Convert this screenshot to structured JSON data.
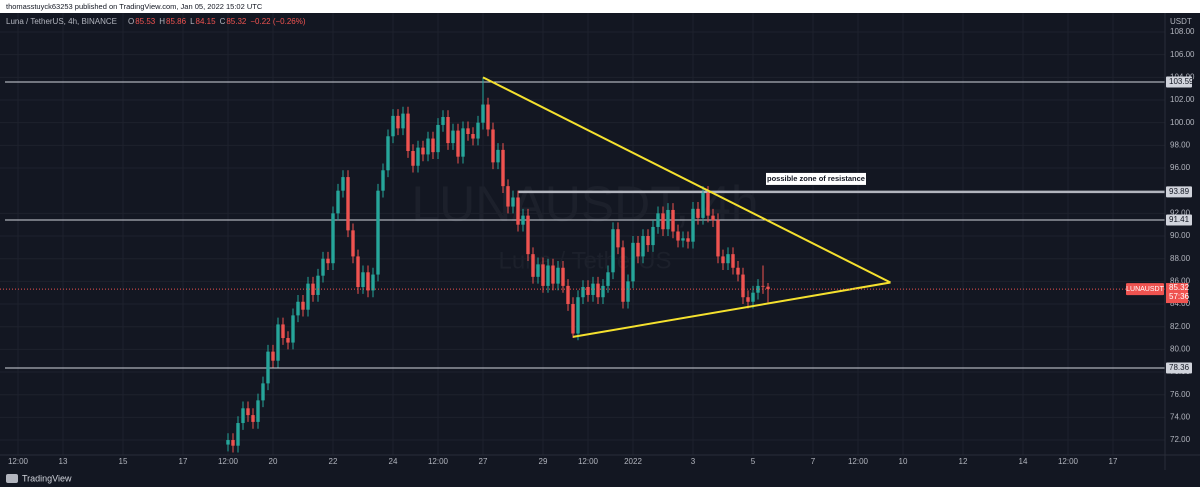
{
  "published": "thomasstuyck63253 published on TradingView.com, Jan 05, 2022 15:02 UTC",
  "footer": "TradingView",
  "header": {
    "symbol": "Luna / TetherUS, 4h, BINANCE",
    "ohlc": [
      {
        "key": "O",
        "value": 85.53
      },
      {
        "key": "H",
        "value": 85.86
      },
      {
        "key": "L",
        "value": 84.15
      },
      {
        "key": "C",
        "value": 85.32
      }
    ],
    "change": "−0.22 (−0.26%)"
  },
  "chart_data": {
    "type": "candlestick",
    "axis_unit": "USDT",
    "watermark": {
      "symbol": "LUNAUSDT, 4h",
      "name": "Luna / TetherUS"
    },
    "up_color": "#26a69a",
    "down_color": "#ef5350",
    "x": [
      420,
      424,
      428,
      432,
      436,
      440,
      444,
      448,
      452,
      456,
      460,
      464,
      468,
      472,
      476,
      480,
      484,
      488,
      492,
      496,
      500,
      504,
      508,
      512,
      516,
      520,
      524,
      528,
      532,
      536,
      540,
      544,
      548,
      552,
      556,
      560,
      564,
      568,
      572,
      576,
      580,
      584,
      588,
      592,
      596,
      600,
      604,
      608,
      612,
      616,
      620,
      624,
      628,
      632,
      636,
      640,
      644,
      648,
      652,
      656,
      660,
      664,
      668,
      672,
      676,
      680,
      684,
      688,
      692,
      696,
      700,
      704,
      708,
      712,
      716,
      720,
      724,
      728,
      732,
      736,
      740,
      744,
      748,
      752,
      756,
      760,
      764,
      768,
      772,
      776,
      780,
      784,
      788,
      792,
      796,
      800,
      804,
      808,
      812,
      816,
      820,
      824,
      828,
      832,
      836,
      840,
      844,
      848,
      852
    ],
    "open": [
      71.6,
      72.0,
      71.5,
      73.5,
      74.8,
      74.2,
      73.6,
      75.5,
      77.0,
      79.8,
      79.0,
      82.2,
      81.0,
      80.6,
      83.0,
      84.2,
      83.5,
      85.8,
      84.8,
      86.5,
      88.0,
      87.6,
      92.0,
      94.0,
      95.2,
      90.5,
      88.2,
      85.5,
      86.8,
      85.2,
      86.6,
      94.0,
      95.8,
      98.8,
      100.6,
      99.5,
      100.8,
      97.5,
      96.2,
      97.8,
      97.2,
      98.6,
      97.4,
      99.8,
      100.5,
      98.2,
      99.3,
      97.0,
      99.5,
      99.0,
      98.6,
      100.0,
      101.6,
      99.4,
      96.5,
      97.6,
      94.4,
      92.6,
      93.4,
      91.0,
      91.8,
      88.4,
      86.4,
      87.5,
      85.6,
      87.4,
      85.8,
      87.2,
      85.6,
      84.0,
      81.4,
      84.6,
      85.5,
      84.8,
      85.8,
      84.6,
      85.6,
      86.8,
      90.6,
      89.0,
      84.2,
      86.0,
      89.4,
      88.2,
      90.0,
      89.2,
      90.8,
      92.0,
      90.6,
      92.3,
      90.4,
      89.6,
      89.8,
      89.5,
      92.4,
      91.6,
      93.8,
      91.8,
      91.4,
      88.2,
      87.6,
      88.4,
      87.2,
      86.6,
      84.6,
      84.2,
      85.0,
      85.6,
      85.53
    ],
    "high": [
      72.6,
      72.6,
      74.1,
      75.4,
      75.4,
      74.8,
      76.1,
      77.6,
      80.4,
      80.4,
      82.8,
      82.8,
      81.6,
      83.6,
      84.8,
      84.8,
      86.4,
      86.4,
      87.1,
      88.6,
      88.6,
      92.6,
      94.6,
      95.8,
      95.8,
      91.1,
      88.8,
      87.4,
      87.4,
      87.2,
      94.6,
      96.4,
      99.4,
      101.2,
      101.2,
      101.4,
      101.4,
      98.1,
      98.4,
      98.4,
      99.2,
      99.2,
      100.4,
      101.1,
      101.1,
      99.9,
      99.9,
      100.1,
      100.1,
      99.6,
      100.6,
      104.0,
      102.2,
      100.0,
      98.2,
      98.2,
      95.0,
      94.0,
      94.0,
      92.4,
      92.4,
      89.0,
      88.1,
      88.1,
      88.0,
      88.0,
      87.8,
      87.8,
      86.2,
      84.6,
      85.2,
      86.1,
      86.1,
      86.4,
      86.4,
      86.2,
      87.4,
      91.2,
      91.2,
      89.6,
      86.6,
      90.0,
      90.0,
      90.6,
      90.6,
      91.4,
      92.6,
      92.6,
      92.9,
      92.9,
      91.0,
      90.4,
      90.4,
      93.0,
      93.0,
      94.4,
      94.4,
      92.4,
      92.0,
      88.8,
      89.0,
      89.0,
      87.8,
      87.2,
      85.2,
      85.6,
      86.2,
      87.4,
      85.86
    ],
    "low": [
      71.0,
      70.9,
      70.9,
      72.9,
      73.6,
      73.0,
      73.0,
      74.9,
      76.4,
      78.4,
      78.4,
      80.4,
      80.0,
      80.0,
      82.4,
      82.9,
      82.9,
      84.2,
      84.2,
      85.9,
      87.0,
      87.0,
      91.4,
      93.4,
      89.9,
      87.6,
      84.9,
      84.9,
      84.6,
      84.6,
      86.0,
      93.4,
      95.2,
      98.2,
      98.9,
      98.9,
      96.9,
      95.6,
      95.6,
      96.6,
      96.6,
      96.8,
      96.8,
      99.2,
      97.6,
      97.6,
      96.4,
      96.4,
      98.4,
      98.0,
      98.0,
      99.4,
      98.8,
      95.9,
      95.9,
      93.8,
      92.0,
      92.0,
      90.4,
      90.4,
      87.8,
      85.8,
      85.8,
      85.0,
      85.0,
      85.2,
      85.2,
      85.0,
      83.4,
      81.0,
      80.8,
      84.0,
      84.2,
      84.2,
      84.0,
      84.0,
      85.0,
      86.2,
      88.4,
      83.6,
      83.6,
      85.4,
      87.6,
      87.6,
      88.6,
      88.6,
      90.2,
      90.0,
      90.0,
      89.8,
      89.0,
      89.0,
      88.9,
      88.9,
      91.0,
      91.0,
      91.2,
      90.8,
      87.6,
      87.0,
      87.0,
      86.6,
      86.0,
      84.0,
      83.6,
      83.6,
      84.4,
      84.9,
      84.15
    ],
    "close": [
      72.0,
      71.5,
      73.5,
      74.8,
      74.2,
      73.6,
      75.5,
      77.0,
      79.8,
      79.0,
      82.2,
      81.0,
      80.6,
      83.0,
      84.2,
      83.5,
      85.8,
      84.8,
      86.5,
      88.0,
      87.6,
      92.0,
      94.0,
      95.2,
      90.5,
      88.2,
      85.5,
      86.8,
      85.2,
      86.6,
      94.0,
      95.8,
      98.8,
      100.6,
      99.5,
      100.8,
      97.5,
      96.2,
      97.8,
      97.2,
      98.6,
      97.4,
      99.8,
      100.5,
      98.2,
      99.3,
      97.0,
      99.5,
      99.0,
      98.6,
      100.0,
      101.6,
      99.4,
      96.5,
      97.6,
      94.4,
      92.6,
      93.4,
      91.0,
      91.8,
      88.4,
      86.4,
      87.5,
      85.6,
      87.4,
      85.8,
      87.2,
      85.6,
      84.0,
      81.4,
      84.6,
      85.5,
      84.8,
      85.8,
      84.6,
      85.6,
      86.8,
      90.6,
      89.0,
      84.2,
      86.0,
      89.4,
      88.2,
      90.0,
      89.2,
      90.8,
      92.0,
      90.6,
      92.3,
      90.4,
      89.6,
      89.8,
      89.5,
      92.4,
      91.6,
      93.8,
      91.8,
      91.4,
      88.2,
      87.6,
      88.4,
      87.2,
      86.6,
      84.6,
      84.2,
      85.0,
      85.6,
      85.53,
      85.32
    ],
    "xlim": [
      237.6,
      1169.6
    ],
    "ylim": [
      70.68,
      109.5
    ],
    "xticks": [
      {
        "value": 252,
        "label": "12:00"
      },
      {
        "value": 288,
        "label": "13"
      },
      {
        "value": 336,
        "label": "15"
      },
      {
        "value": 384,
        "label": "17"
      },
      {
        "value": 420,
        "label": "12:00"
      },
      {
        "value": 456,
        "label": "20"
      },
      {
        "value": 504,
        "label": "22"
      },
      {
        "value": 552,
        "label": "24"
      },
      {
        "value": 588,
        "label": "12:00"
      },
      {
        "value": 624,
        "label": "27"
      },
      {
        "value": 672,
        "label": "29"
      },
      {
        "value": 708,
        "label": "12:00"
      },
      {
        "value": 744,
        "label": "2022"
      },
      {
        "value": 792,
        "label": "3"
      },
      {
        "value": 840,
        "label": "5"
      },
      {
        "value": 888,
        "label": "7"
      },
      {
        "value": 924,
        "label": "12:00"
      },
      {
        "value": 960,
        "label": "10"
      },
      {
        "value": 1008,
        "label": "12"
      },
      {
        "value": 1056,
        "label": "14"
      },
      {
        "value": 1092,
        "label": "12:00"
      },
      {
        "value": 1128,
        "label": "17"
      }
    ],
    "yticks": [
      {
        "value": 72,
        "label": "72.00"
      },
      {
        "value": 74,
        "label": "74.00"
      },
      {
        "value": 76,
        "label": "76.00"
      },
      {
        "value": 78,
        "label": "78.00"
      },
      {
        "value": 80,
        "label": "80.00"
      },
      {
        "value": 82,
        "label": "82.00"
      },
      {
        "value": 84,
        "label": "84.00"
      },
      {
        "value": 86,
        "label": "86.00"
      },
      {
        "value": 88,
        "label": "88.00"
      },
      {
        "value": 90,
        "label": "90.00"
      },
      {
        "value": 92,
        "label": "92.00"
      },
      {
        "value": 96,
        "label": "96.00"
      },
      {
        "value": 98,
        "label": "98.00"
      },
      {
        "value": 100,
        "label": "100.00"
      },
      {
        "value": 102,
        "label": "102.00"
      },
      {
        "value": 104,
        "label": "104.00"
      },
      {
        "value": 106,
        "label": "106.00"
      },
      {
        "value": 108,
        "label": "108.00"
      }
    ],
    "grid": true,
    "levels": [
      103.59,
      93.89,
      91.41,
      78.36
    ],
    "resistance_label": "possible zone of resistance",
    "trendlines": [
      [
        [
          624,
          104.0
        ],
        [
          950,
          85.9
        ]
      ],
      [
        [
          696,
          81.1
        ],
        [
          950,
          85.9
        ]
      ]
    ],
    "trendline_color": "#f5e12e",
    "price_tag": {
      "symbol": "LUNAUSDT",
      "price": 85.32,
      "countdown": "57:36"
    }
  }
}
